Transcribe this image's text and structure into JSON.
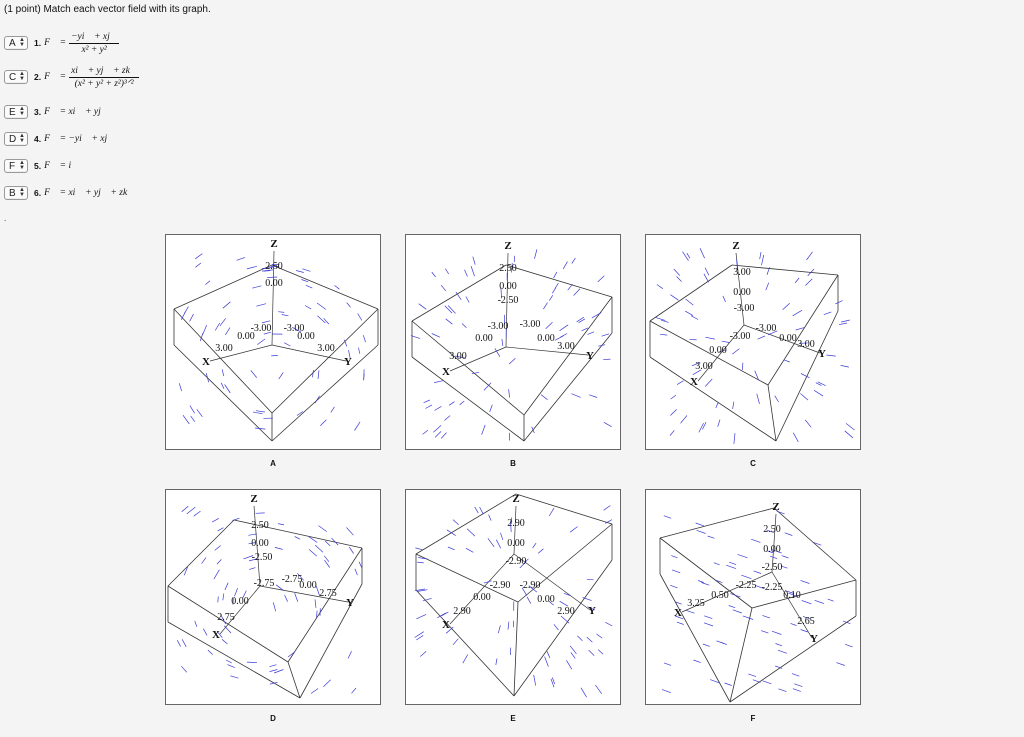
{
  "prompt": "(1 point) Match each vector field with its graph.",
  "questions": [
    {
      "selected": "A",
      "num": "1.",
      "lhs": "F⃗ =",
      "numerator": "−yi⃗ + xj⃗",
      "denominator": "x² + y²"
    },
    {
      "selected": "C",
      "num": "2.",
      "lhs": "F⃗ =",
      "numerator": "xi⃗ + yj⃗ + zk⃗",
      "denominator": "(x² + y² + z²)³ᐟ²"
    },
    {
      "selected": "E",
      "num": "3.",
      "lhs": "F⃗ = xi⃗ + yj⃗"
    },
    {
      "selected": "D",
      "num": "4.",
      "lhs": "F⃗ = −yi⃗ + xj⃗"
    },
    {
      "selected": "F",
      "num": "5.",
      "lhs": "F⃗ = i⃗"
    },
    {
      "selected": "B",
      "num": "6.",
      "lhs": "F⃗ = xi⃗ + yj⃗ + zk⃗"
    }
  ],
  "graphs": [
    {
      "caption": "A",
      "z_ticks": [
        "2.50",
        "0.00"
      ],
      "floor_ticks": [
        "-3.00",
        "-3.00",
        "0.00",
        "0.00",
        "3.00",
        "3.00"
      ]
    },
    {
      "caption": "B",
      "z_ticks": [
        "2.50",
        "0.00",
        "-2.50"
      ],
      "floor_ticks": [
        "-3.00",
        "-3.00",
        "0.00",
        "0.00",
        "3.00",
        "3.00"
      ]
    },
    {
      "caption": "C",
      "z_ticks": [
        "3.00",
        "0.00",
        "-3.00"
      ],
      "floor_ticks": [
        "-3.00",
        "-3.00",
        "0.00",
        "0.00",
        "3.00",
        "3.00"
      ]
    },
    {
      "caption": "D",
      "z_ticks": [
        "2.50",
        "0.00",
        "-2.50"
      ],
      "floor_ticks": [
        "-2.75",
        "-2.75",
        "0.00",
        "0.00",
        "2.75",
        "2.75"
      ]
    },
    {
      "caption": "E",
      "z_ticks": [
        "2.90",
        "0.00",
        "-2.90"
      ],
      "floor_ticks": [
        "-2.90",
        "-2.90",
        "0.00",
        "0.00",
        "2.90",
        "2.90"
      ]
    },
    {
      "caption": "F",
      "z_ticks": [
        "2.50",
        "0.00",
        "-2.50"
      ],
      "floor_ticks": [
        "-2.25",
        "-2.25",
        "0.50",
        "0.10",
        "3.25",
        "2.65"
      ]
    }
  ],
  "axis_names": {
    "x": "X",
    "y": "Y",
    "z": "Z"
  },
  "colors": {
    "arrow": "#3a3ad6",
    "box_line": "#333333"
  }
}
